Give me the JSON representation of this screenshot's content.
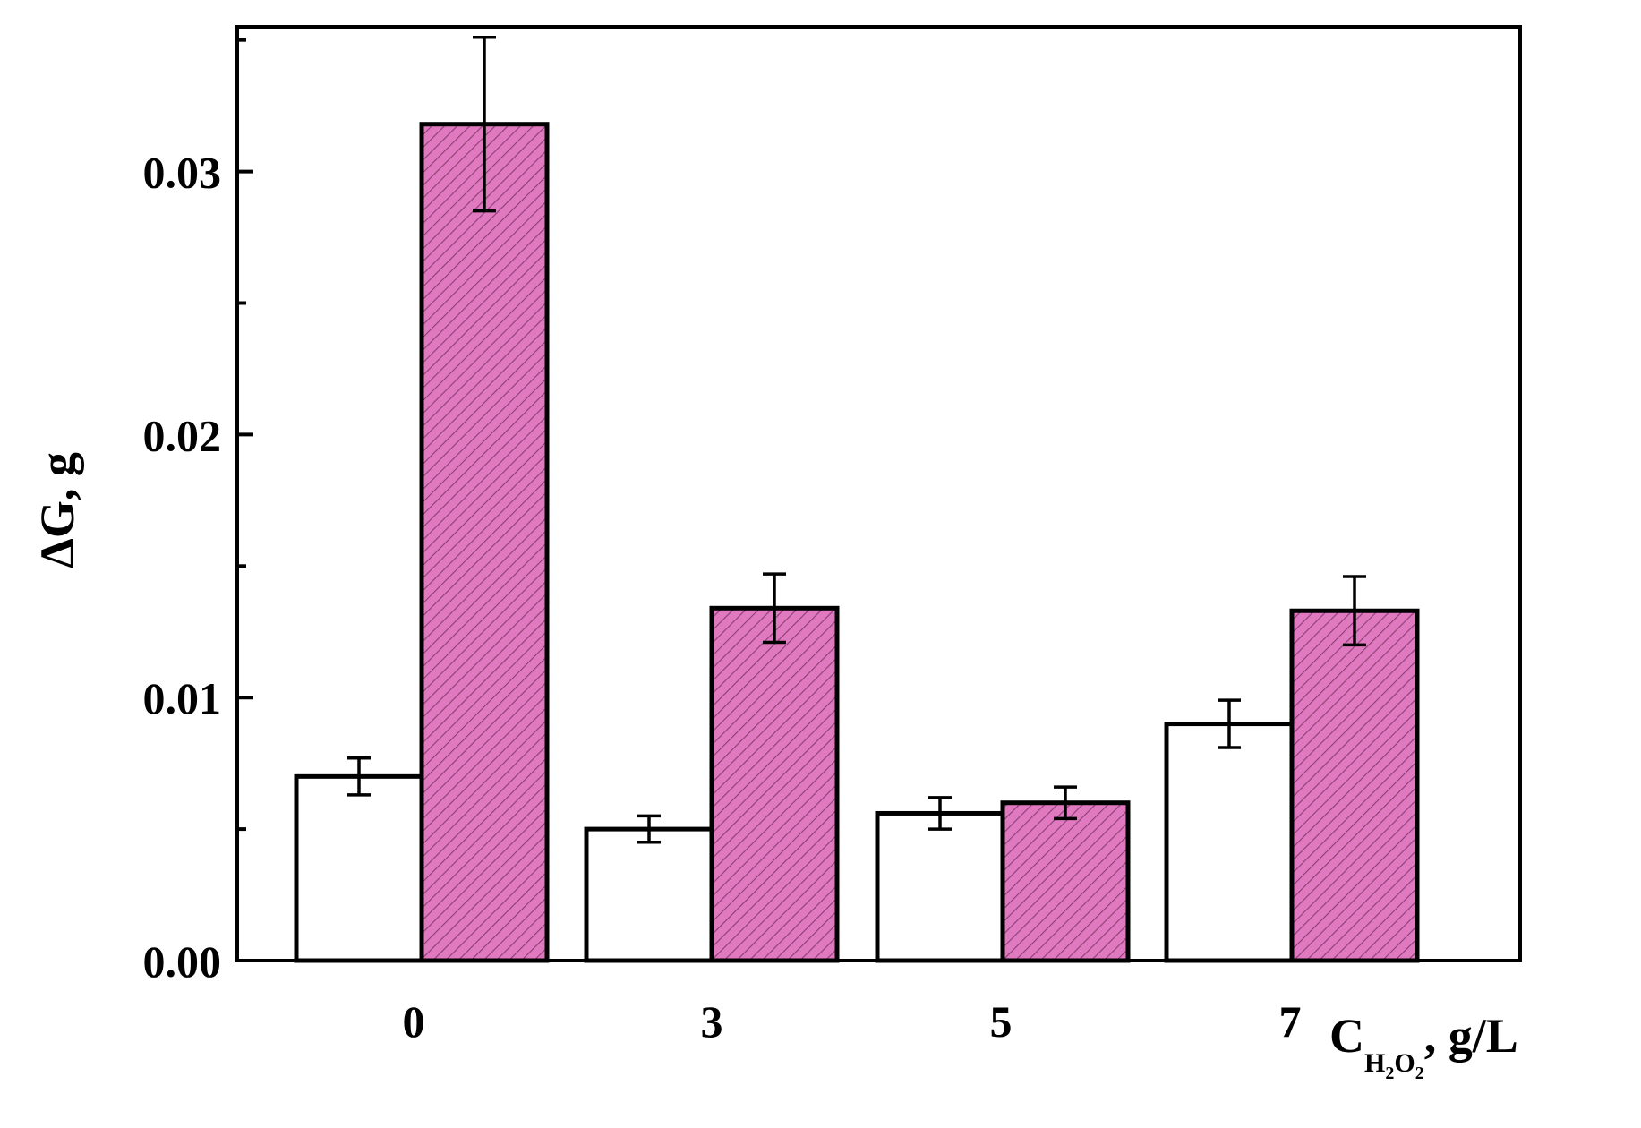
{
  "chart_data": {
    "type": "bar",
    "categories": [
      "0",
      "3",
      "5",
      "7"
    ],
    "series": [
      {
        "values": [
          0.007,
          0.005,
          0.0056,
          0.009
        ],
        "errors": [
          0.0007,
          0.0005,
          0.0006,
          0.0009
        ],
        "fill": "#ffffff",
        "pattern": "none"
      },
      {
        "values": [
          0.0318,
          0.0134,
          0.006,
          0.0133
        ],
        "errors": [
          0.0033,
          0.0013,
          0.0006,
          0.0013
        ],
        "fill": "#e079c0",
        "pattern": "diagonal-hatch"
      }
    ],
    "ylim": [
      0,
      0.0355
    ],
    "yticks": [
      "0.00",
      "0.01",
      "0.02",
      "0.03"
    ],
    "ylabel": "ΔG, g",
    "xlabel": {
      "main": "C",
      "sub1": "H",
      "num1": "2",
      "sub2": "O",
      "num2": "2",
      "tail": ", g/L"
    },
    "grid": false,
    "legend": "none",
    "colors": {
      "axis": "#000000",
      "hatch_fill": "#e079c0",
      "hatch_line": "#8a3f73"
    }
  }
}
